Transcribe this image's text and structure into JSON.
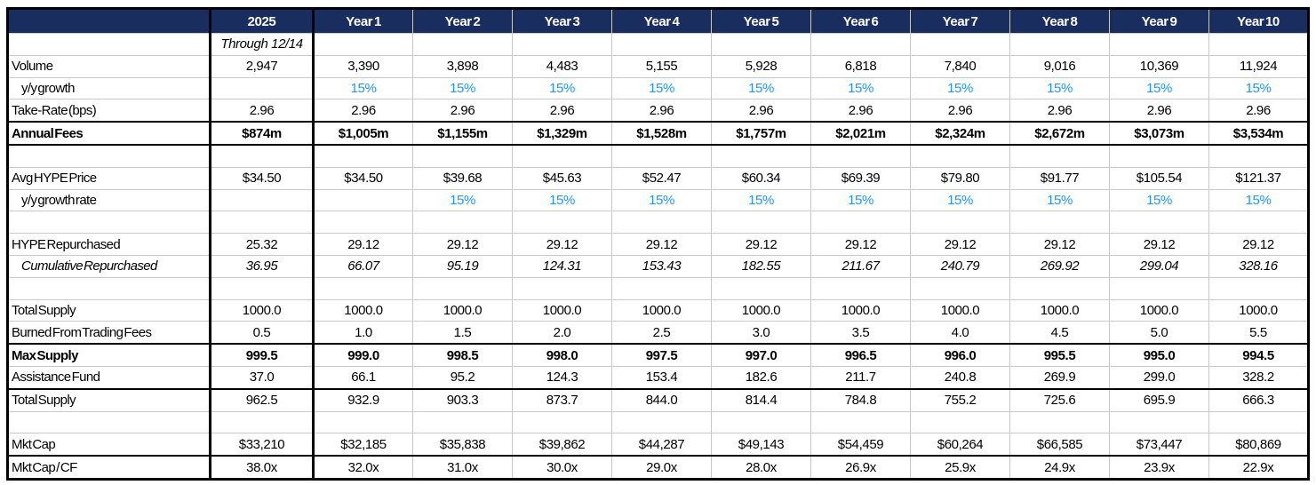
{
  "colors": {
    "header_bg": "#1a2d5f",
    "header_text": "#ffffff",
    "growth_blue": "#2196f3",
    "gridline": "#c9c9c9",
    "thick_border": "#000000"
  },
  "header": {
    "corner": "",
    "columns": [
      "2025",
      "Year 1",
      "Year 2",
      "Year 3",
      "Year 4",
      "Year 5",
      "Year 6",
      "Year 7",
      "Year 8",
      "Year 9",
      "Year 10"
    ]
  },
  "rows": [
    {
      "label": "",
      "style": {
        "subheader": true
      },
      "values": [
        "Through 12/14",
        "",
        "",
        "",
        "",
        "",
        "",
        "",
        "",
        "",
        ""
      ]
    },
    {
      "label": "Volume",
      "style": {},
      "values": [
        "2,947",
        "3,390",
        "3,898",
        "4,483",
        "5,155",
        "5,928",
        "6,818",
        "7,840",
        "9,016",
        "10,369",
        "11,924"
      ]
    },
    {
      "label": "y/y growth",
      "style": {
        "indent": true,
        "blue_values": true
      },
      "values": [
        "",
        "15%",
        "15%",
        "15%",
        "15%",
        "15%",
        "15%",
        "15%",
        "15%",
        "15%",
        "15%"
      ]
    },
    {
      "label": "Take-Rate (bps)",
      "style": {},
      "values": [
        "2.96",
        "2.96",
        "2.96",
        "2.96",
        "2.96",
        "2.96",
        "2.96",
        "2.96",
        "2.96",
        "2.96",
        "2.96"
      ]
    },
    {
      "label": "Annual Fees",
      "style": {
        "bold": true,
        "thick_top": true,
        "thick_bottom": true
      },
      "values": [
        "$874m",
        "$1,005m",
        "$1,155m",
        "$1,329m",
        "$1,528m",
        "$1,757m",
        "$2,021m",
        "$2,324m",
        "$2,672m",
        "$3,073m",
        "$3,534m"
      ]
    },
    {
      "label": "",
      "style": {
        "blank": true
      },
      "values": [
        "",
        "",
        "",
        "",
        "",
        "",
        "",
        "",
        "",
        "",
        ""
      ]
    },
    {
      "label": "Avg HYPE Price",
      "style": {},
      "values": [
        "$34.50",
        "$34.50",
        "$39.68",
        "$45.63",
        "$52.47",
        "$60.34",
        "$69.39",
        "$79.80",
        "$91.77",
        "$105.54",
        "$121.37"
      ]
    },
    {
      "label": "y/y growth rate",
      "style": {
        "indent": true,
        "blue_values": true
      },
      "values": [
        "",
        "",
        "15%",
        "15%",
        "15%",
        "15%",
        "15%",
        "15%",
        "15%",
        "15%",
        "15%"
      ]
    },
    {
      "label": "",
      "style": {
        "blank": true
      },
      "values": [
        "",
        "",
        "",
        "",
        "",
        "",
        "",
        "",
        "",
        "",
        ""
      ]
    },
    {
      "label": "HYPE Repurchased",
      "style": {},
      "values": [
        "25.32",
        "29.12",
        "29.12",
        "29.12",
        "29.12",
        "29.12",
        "29.12",
        "29.12",
        "29.12",
        "29.12",
        "29.12"
      ]
    },
    {
      "label": "Cumulative Repurchased",
      "style": {
        "indent": true,
        "italic_label": true,
        "italic_values": true
      },
      "values": [
        "36.95",
        "66.07",
        "95.19",
        "124.31",
        "153.43",
        "182.55",
        "211.67",
        "240.79",
        "269.92",
        "299.04",
        "328.16"
      ]
    },
    {
      "label": "",
      "style": {
        "blank": true
      },
      "values": [
        "",
        "",
        "",
        "",
        "",
        "",
        "",
        "",
        "",
        "",
        ""
      ]
    },
    {
      "label": "Total Supply",
      "style": {},
      "values": [
        "1000.0",
        "1000.0",
        "1000.0",
        "1000.0",
        "1000.0",
        "1000.0",
        "1000.0",
        "1000.0",
        "1000.0",
        "1000.0",
        "1000.0"
      ]
    },
    {
      "label": "Burned From Trading Fees",
      "style": {},
      "values": [
        "0.5",
        "1.0",
        "1.5",
        "2.0",
        "2.5",
        "3.0",
        "3.5",
        "4.0",
        "4.5",
        "5.0",
        "5.5"
      ]
    },
    {
      "label": "Max Supply",
      "style": {
        "bold": true,
        "thick_top": true
      },
      "values": [
        "999.5",
        "999.0",
        "998.5",
        "998.0",
        "997.5",
        "997.0",
        "996.5",
        "996.0",
        "995.5",
        "995.0",
        "994.5"
      ]
    },
    {
      "label": "Assistance Fund",
      "style": {
        "thick_bottom": true
      },
      "values": [
        "37.0",
        "66.1",
        "95.2",
        "124.3",
        "153.4",
        "182.6",
        "211.7",
        "240.8",
        "269.9",
        "299.0",
        "328.2"
      ]
    },
    {
      "label": "Total Supply",
      "style": {},
      "values": [
        "962.5",
        "932.9",
        "903.3",
        "873.7",
        "844.0",
        "814.4",
        "784.8",
        "755.2",
        "725.6",
        "695.9",
        "666.3"
      ]
    },
    {
      "label": "",
      "style": {
        "blank": true
      },
      "values": [
        "",
        "",
        "",
        "",
        "",
        "",
        "",
        "",
        "",
        "",
        ""
      ]
    },
    {
      "label": "Mkt Cap",
      "style": {
        "thick_bottom": true
      },
      "values": [
        "$33,210",
        "$32,185",
        "$35,838",
        "$39,862",
        "$44,287",
        "$49,143",
        "$54,459",
        "$60,264",
        "$66,585",
        "$73,447",
        "$80,869"
      ]
    },
    {
      "label": "Mkt Cap / CF",
      "style": {},
      "values": [
        "38.0x",
        "32.0x",
        "31.0x",
        "30.0x",
        "29.0x",
        "28.0x",
        "26.9x",
        "25.9x",
        "24.9x",
        "23.9x",
        "22.9x"
      ]
    }
  ]
}
